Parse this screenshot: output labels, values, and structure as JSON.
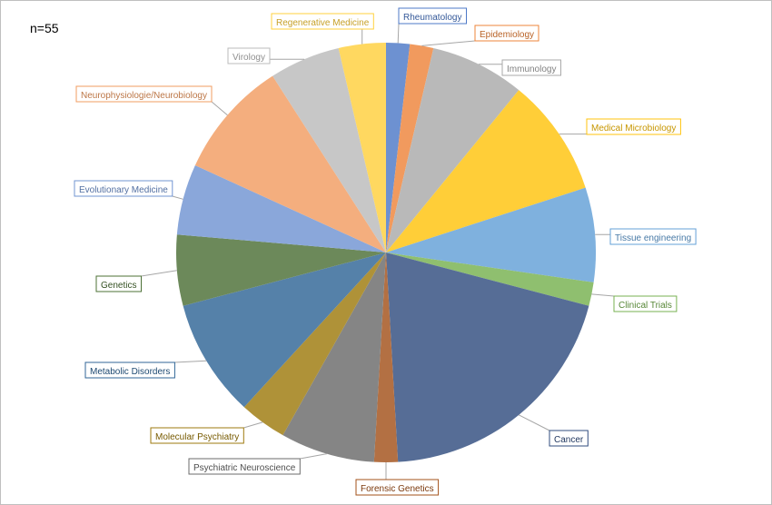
{
  "header": {
    "n_label": "n=55"
  },
  "chart_data": {
    "type": "pie",
    "title": "",
    "slices": [
      {
        "label": "Rheumatology",
        "value": 1,
        "color": "#4472c4"
      },
      {
        "label": "Epidemiology",
        "value": 1,
        "color": "#ed7d31"
      },
      {
        "label": "Immunology",
        "value": 4,
        "color": "#a5a5a5"
      },
      {
        "label": "Medical Microbiology",
        "value": 5,
        "color": "#ffc000"
      },
      {
        "label": "Tissue engineering",
        "value": 4,
        "color": "#5b9bd5"
      },
      {
        "label": "Clinical Trials",
        "value": 1,
        "color": "#70ad47"
      },
      {
        "label": "Cancer",
        "value": 11,
        "color": "#264478"
      },
      {
        "label": "Forensic Genetics",
        "value": 1,
        "color": "#9e480e"
      },
      {
        "label": "Psychiatric Neuroscience",
        "value": 4,
        "color": "#636363"
      },
      {
        "label": "Molecular Psychiatry",
        "value": 2,
        "color": "#997300"
      },
      {
        "label": "Metabolic Disorders",
        "value": 5,
        "color": "#255e91"
      },
      {
        "label": "Genetics",
        "value": 3,
        "color": "#43682b"
      },
      {
        "label": "Evolutionary Medicine",
        "value": 3,
        "color": "#698ed0"
      },
      {
        "label": "Neurophysiologie/Neurobiology",
        "value": 5,
        "color": "#f1975a"
      },
      {
        "label": "Virology",
        "value": 3,
        "color": "#b7b7b7"
      },
      {
        "label": "Regenerative Medicine",
        "value": 2,
        "color": "#ffcd33"
      }
    ]
  }
}
